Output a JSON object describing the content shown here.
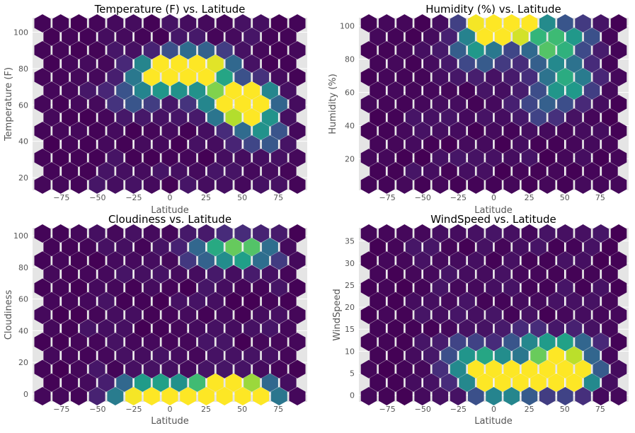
{
  "colors": {
    "panel": "#E5E5E5",
    "grid": "#FFFFFF",
    "colormap": [
      "#440154",
      "#482878",
      "#3E4A89",
      "#31688E",
      "#26828E",
      "#1F9E89",
      "#35B779",
      "#6DCD59",
      "#B4DE2C",
      "#FDE725"
    ]
  },
  "chart_data": [
    {
      "type": "hexbin",
      "title": "Temperature (F) vs. Latitude",
      "xlabel": "Latitude",
      "ylabel": "Temperature (F)",
      "xlim": [
        -95,
        95
      ],
      "ylim": [
        13,
        108
      ],
      "xticks": [
        -75,
        -50,
        -25,
        0,
        25,
        50,
        75
      ],
      "yticks": [
        20,
        40,
        60,
        80,
        100
      ],
      "grid": true,
      "hot_spots": [
        {
          "x": 7,
          "y": 81,
          "v": 1.0
        },
        {
          "x": 55,
          "y": 58,
          "v": 0.78
        },
        {
          "x": 50,
          "y": 63,
          "v": 0.62
        },
        {
          "x": 55,
          "y": 66,
          "v": 0.6
        },
        {
          "x": -7,
          "y": 79,
          "v": 0.6
        },
        {
          "x": 22,
          "y": 84,
          "v": 0.5
        },
        {
          "x": 20,
          "y": 76,
          "v": 0.45
        },
        {
          "x": 40,
          "y": 62,
          "v": 0.45
        },
        {
          "x": 30,
          "y": 80,
          "v": 0.42
        },
        {
          "x": -12,
          "y": 72,
          "v": 0.38
        },
        {
          "x": 0,
          "y": 76,
          "v": 0.35
        },
        {
          "x": 45,
          "y": 55,
          "v": 0.35
        },
        {
          "x": 60,
          "y": 50,
          "v": 0.32
        },
        {
          "x": 65,
          "y": 42,
          "v": 0.3
        },
        {
          "x": -25,
          "y": 63,
          "v": 0.25
        },
        {
          "x": 10,
          "y": 71,
          "v": 0.25
        },
        {
          "x": 35,
          "y": 68,
          "v": 0.3
        }
      ]
    },
    {
      "type": "hexbin",
      "title": "Humidity (%) vs. Latitude",
      "xlabel": "Latitude",
      "ylabel": "Humidity (%)",
      "xlim": [
        -95,
        95
      ],
      "ylim": [
        1,
        105
      ],
      "xticks": [
        -75,
        -50,
        -25,
        0,
        25,
        50,
        75
      ],
      "yticks": [
        20,
        40,
        60,
        80,
        100
      ],
      "grid": true,
      "hot_spots": [
        {
          "x": 7,
          "y": 100,
          "v": 1.0
        },
        {
          "x": 2,
          "y": 97,
          "v": 0.78
        },
        {
          "x": 42,
          "y": 87,
          "v": 0.72
        },
        {
          "x": -2,
          "y": 100,
          "v": 0.55
        },
        {
          "x": 50,
          "y": 62,
          "v": 0.5
        },
        {
          "x": 12,
          "y": 100,
          "v": 0.45
        },
        {
          "x": 30,
          "y": 100,
          "v": 0.4
        },
        {
          "x": -15,
          "y": 86,
          "v": 0.35
        },
        {
          "x": 55,
          "y": 95,
          "v": 0.35
        },
        {
          "x": 45,
          "y": 75,
          "v": 0.3
        },
        {
          "x": 55,
          "y": 70,
          "v": 0.3
        },
        {
          "x": 35,
          "y": 50,
          "v": 0.25
        },
        {
          "x": -5,
          "y": 80,
          "v": 0.25
        }
      ]
    },
    {
      "type": "hexbin",
      "title": "Cloudiness vs. Latitude",
      "xlabel": "Latitude",
      "ylabel": "Cloudiness",
      "xlim": [
        -95,
        95
      ],
      "ylim": [
        -5,
        105
      ],
      "xticks": [
        -75,
        -50,
        -25,
        0,
        25,
        50,
        75
      ],
      "yticks": [
        0,
        20,
        40,
        60,
        80,
        100
      ],
      "grid": true,
      "hot_spots": [
        {
          "x": 52,
          "y": 0,
          "v": 1.0
        },
        {
          "x": 42,
          "y": 0,
          "v": 0.85
        },
        {
          "x": -12,
          "y": 0,
          "v": 0.65
        },
        {
          "x": 30,
          "y": 0,
          "v": 0.6
        },
        {
          "x": 35,
          "y": 0,
          "v": 0.55
        },
        {
          "x": -25,
          "y": 0,
          "v": 0.55
        },
        {
          "x": 22,
          "y": 0,
          "v": 0.5
        },
        {
          "x": 60,
          "y": 0,
          "v": 0.45
        },
        {
          "x": -5,
          "y": 0,
          "v": 0.4
        },
        {
          "x": 50,
          "y": 90,
          "v": 0.4
        },
        {
          "x": 60,
          "y": 90,
          "v": 0.35
        },
        {
          "x": 40,
          "y": 90,
          "v": 0.3
        },
        {
          "x": 25,
          "y": 90,
          "v": 0.3
        },
        {
          "x": 10,
          "y": 0,
          "v": 0.35
        }
      ]
    },
    {
      "type": "hexbin",
      "title": "WindSpeed vs. Latitude",
      "xlabel": "Latitude",
      "ylabel": "WindSpeed",
      "xlim": [
        -95,
        95
      ],
      "ylim": [
        -1.5,
        38
      ],
      "xticks": [
        -75,
        -50,
        -25,
        0,
        25,
        50,
        75
      ],
      "yticks": [
        0,
        5,
        10,
        15,
        20,
        25,
        30,
        35
      ],
      "grid": true,
      "hot_spots": [
        {
          "x": 53,
          "y": 3.8,
          "v": 1.0
        },
        {
          "x": 2,
          "y": 2.5,
          "v": 0.8
        },
        {
          "x": 40,
          "y": 5.5,
          "v": 0.6
        },
        {
          "x": -12,
          "y": 5.5,
          "v": 0.55
        },
        {
          "x": 30,
          "y": 3.5,
          "v": 0.5
        },
        {
          "x": 48,
          "y": 8.5,
          "v": 0.5
        },
        {
          "x": 35,
          "y": 4.5,
          "v": 0.45
        },
        {
          "x": 20,
          "y": 5.5,
          "v": 0.45
        },
        {
          "x": 10,
          "y": 2.5,
          "v": 0.4
        },
        {
          "x": -3,
          "y": 5.5,
          "v": 0.35
        },
        {
          "x": 42,
          "y": 10,
          "v": 0.35
        },
        {
          "x": 55,
          "y": 11,
          "v": 0.3
        },
        {
          "x": 25,
          "y": 12,
          "v": 0.3
        },
        {
          "x": -20,
          "y": 10,
          "v": 0.3
        },
        {
          "x": 0,
          "y": 8,
          "v": 0.3
        },
        {
          "x": 60,
          "y": 6,
          "v": 0.35
        }
      ]
    }
  ]
}
